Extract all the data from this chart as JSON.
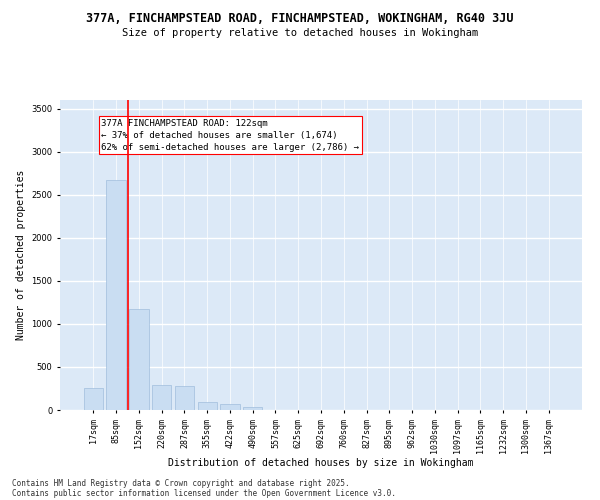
{
  "title1": "377A, FINCHAMPSTEAD ROAD, FINCHAMPSTEAD, WOKINGHAM, RG40 3JU",
  "title2": "Size of property relative to detached houses in Wokingham",
  "xlabel": "Distribution of detached houses by size in Wokingham",
  "ylabel": "Number of detached properties",
  "categories": [
    "17sqm",
    "85sqm",
    "152sqm",
    "220sqm",
    "287sqm",
    "355sqm",
    "422sqm",
    "490sqm",
    "557sqm",
    "625sqm",
    "692sqm",
    "760sqm",
    "827sqm",
    "895sqm",
    "962sqm",
    "1030sqm",
    "1097sqm",
    "1165sqm",
    "1232sqm",
    "1300sqm",
    "1367sqm"
  ],
  "values": [
    250,
    2670,
    1170,
    290,
    280,
    90,
    75,
    35,
    0,
    0,
    0,
    0,
    0,
    0,
    0,
    0,
    0,
    0,
    0,
    0,
    0
  ],
  "bar_color": "#c9ddf2",
  "bar_edge_color": "#a0bedd",
  "vline_color": "red",
  "annotation_text": "377A FINCHAMPSTEAD ROAD: 122sqm\n← 37% of detached houses are smaller (1,674)\n62% of semi-detached houses are larger (2,786) →",
  "annotation_box_color": "white",
  "annotation_box_edge_color": "red",
  "ylim": [
    0,
    3600
  ],
  "yticks": [
    0,
    500,
    1000,
    1500,
    2000,
    2500,
    3000,
    3500
  ],
  "background_color": "#dce9f7",
  "grid_color": "white",
  "footer1": "Contains HM Land Registry data © Crown copyright and database right 2025.",
  "footer2": "Contains public sector information licensed under the Open Government Licence v3.0.",
  "title_fontsize": 8.5,
  "subtitle_fontsize": 7.5,
  "axis_label_fontsize": 7,
  "tick_fontsize": 6,
  "annotation_fontsize": 6.5,
  "footer_fontsize": 5.5
}
